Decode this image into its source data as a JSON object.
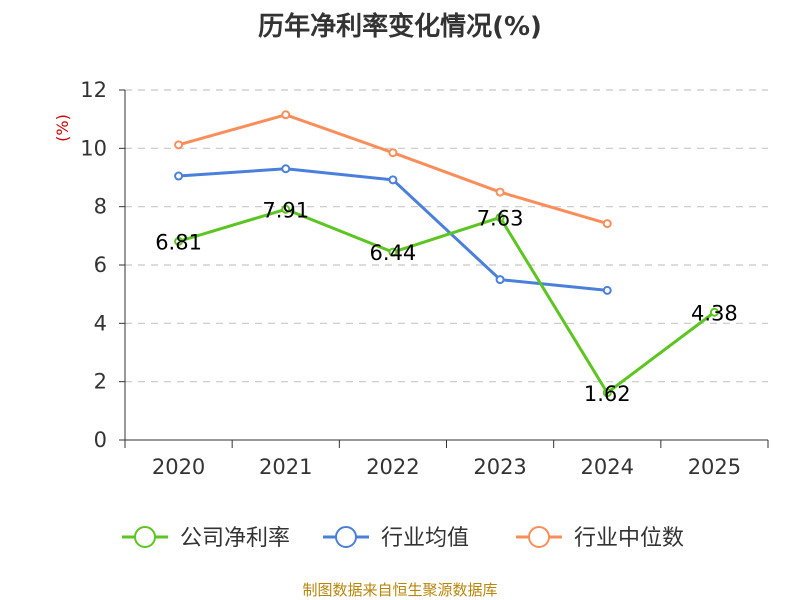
{
  "chart_data": {
    "type": "line",
    "title": "历年净利率变化情况(%)",
    "ylabel": "(%)",
    "xlabel": "",
    "categories": [
      "2020",
      "2021",
      "2022",
      "2023",
      "2024",
      "2025"
    ],
    "ylim": [
      0,
      12
    ],
    "yticks": [
      0,
      2,
      4,
      6,
      8,
      10,
      12
    ],
    "grid": true,
    "legend_position": "bottom",
    "series": [
      {
        "name": "公司净利率",
        "color": "#5dc521",
        "values": [
          6.81,
          7.91,
          6.44,
          7.63,
          1.62,
          4.38
        ],
        "labels": [
          "6.81",
          "7.91",
          "6.44",
          "7.63",
          "1.62",
          "4.38"
        ]
      },
      {
        "name": "行业均值",
        "color": "#4a7fdc",
        "values": [
          9.05,
          9.3,
          8.92,
          5.5,
          5.13,
          null
        ]
      },
      {
        "name": "行业中位数",
        "color": "#fa8e5a",
        "values": [
          10.12,
          11.15,
          9.85,
          8.5,
          7.42,
          null
        ]
      }
    ],
    "source": "制图数据来自恒生聚源数据库"
  }
}
